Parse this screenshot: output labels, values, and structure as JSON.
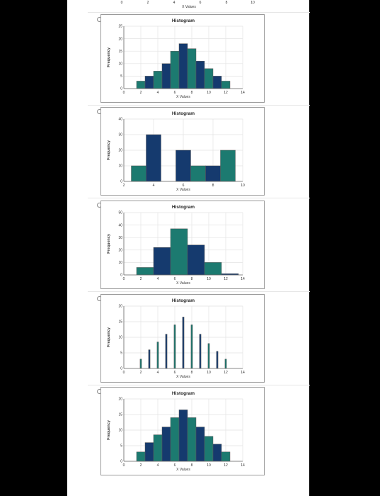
{
  "colors": {
    "teal": "#1c7a70",
    "navy": "#153a6e",
    "grid": "#e3e3e3",
    "axis": "#666666"
  },
  "top_axis": {
    "ticks": [
      "0",
      "2",
      "4",
      "6",
      "8",
      "10"
    ],
    "label": "X Values"
  },
  "options": [
    {
      "radio": "unselected",
      "chart_index": 0
    },
    {
      "radio": "unselected",
      "chart_index": 1
    },
    {
      "radio": "unselected",
      "chart_index": 2
    },
    {
      "radio": "unselected",
      "chart_index": 3
    },
    {
      "radio": "unselected",
      "chart_index": 4
    }
  ],
  "chart_data": [
    {
      "type": "bar",
      "title": "Histogram",
      "xlabel": "X Values",
      "ylabel": "Frequency",
      "xlim": [
        0,
        14
      ],
      "ylim": [
        0,
        25
      ],
      "xticks": [
        0,
        2,
        4,
        6,
        8,
        10,
        12,
        14
      ],
      "yticks": [
        0,
        5,
        10,
        15,
        20,
        25
      ],
      "bar_width": 1,
      "bins": [
        {
          "x": 2,
          "value": 3
        },
        {
          "x": 3,
          "value": 5
        },
        {
          "x": 4,
          "value": 7
        },
        {
          "x": 5,
          "value": 10
        },
        {
          "x": 6,
          "value": 15
        },
        {
          "x": 7,
          "value": 18
        },
        {
          "x": 8,
          "value": 16
        },
        {
          "x": 9,
          "value": 11
        },
        {
          "x": 10,
          "value": 8
        },
        {
          "x": 11,
          "value": 5
        },
        {
          "x": 12,
          "value": 3
        }
      ]
    },
    {
      "type": "bar",
      "title": "Histogram",
      "xlabel": "X Values",
      "ylabel": "Frequency",
      "xlim": [
        2,
        10
      ],
      "ylim": [
        0,
        40
      ],
      "xticks": [
        2,
        4,
        6,
        8,
        10
      ],
      "yticks": [
        0,
        10,
        20,
        30,
        40
      ],
      "bar_width": 1,
      "bins": [
        {
          "x": 3,
          "value": 10
        },
        {
          "x": 4,
          "value": 30
        },
        {
          "x": 5,
          "value": 0
        },
        {
          "x": 6,
          "value": 20
        },
        {
          "x": 7,
          "value": 10
        },
        {
          "x": 8,
          "value": 10
        },
        {
          "x": 9,
          "value": 20
        }
      ]
    },
    {
      "type": "bar",
      "title": "Histogram",
      "xlabel": "X Values",
      "ylabel": "Frequency",
      "xlim": [
        0,
        14
      ],
      "ylim": [
        0,
        50
      ],
      "xticks": [
        0,
        2,
        4,
        6,
        8,
        10,
        12,
        14
      ],
      "yticks": [
        0,
        10,
        20,
        30,
        40,
        50
      ],
      "bar_width": 2,
      "bins": [
        {
          "x": 2.5,
          "value": 6
        },
        {
          "x": 4.5,
          "value": 22
        },
        {
          "x": 6.5,
          "value": 37
        },
        {
          "x": 8.5,
          "value": 24
        },
        {
          "x": 10.5,
          "value": 10
        },
        {
          "x": 12.5,
          "value": 1
        }
      ]
    },
    {
      "type": "bar",
      "title": "Histogram",
      "xlabel": "X Values",
      "ylabel": "Frequency",
      "xlim": [
        0,
        14
      ],
      "ylim": [
        0,
        20
      ],
      "xticks": [
        0,
        2,
        4,
        6,
        8,
        10,
        12,
        14
      ],
      "yticks": [
        0,
        5,
        10,
        15,
        20
      ],
      "bar_width": 0.18,
      "bins": [
        {
          "x": 2,
          "value": 3
        },
        {
          "x": 3,
          "value": 6
        },
        {
          "x": 4,
          "value": 8.5
        },
        {
          "x": 5,
          "value": 11
        },
        {
          "x": 6,
          "value": 14
        },
        {
          "x": 7,
          "value": 16.5
        },
        {
          "x": 8,
          "value": 14
        },
        {
          "x": 9,
          "value": 11
        },
        {
          "x": 10,
          "value": 8
        },
        {
          "x": 11,
          "value": 5.5
        },
        {
          "x": 12,
          "value": 3
        }
      ]
    },
    {
      "type": "bar",
      "title": "Histogram",
      "xlabel": "X Values",
      "ylabel": "Frequency",
      "xlim": [
        0,
        14
      ],
      "ylim": [
        0,
        20
      ],
      "xticks": [
        0,
        2,
        4,
        6,
        8,
        10,
        12,
        14
      ],
      "yticks": [
        0,
        5,
        10,
        15,
        20
      ],
      "bar_width": 1,
      "bins": [
        {
          "x": 2,
          "value": 3
        },
        {
          "x": 3,
          "value": 6
        },
        {
          "x": 4,
          "value": 8.5
        },
        {
          "x": 5,
          "value": 11
        },
        {
          "x": 6,
          "value": 14
        },
        {
          "x": 7,
          "value": 16.5
        },
        {
          "x": 8,
          "value": 14
        },
        {
          "x": 9,
          "value": 11
        },
        {
          "x": 10,
          "value": 8
        },
        {
          "x": 11,
          "value": 5.5
        },
        {
          "x": 12,
          "value": 3
        }
      ]
    }
  ]
}
